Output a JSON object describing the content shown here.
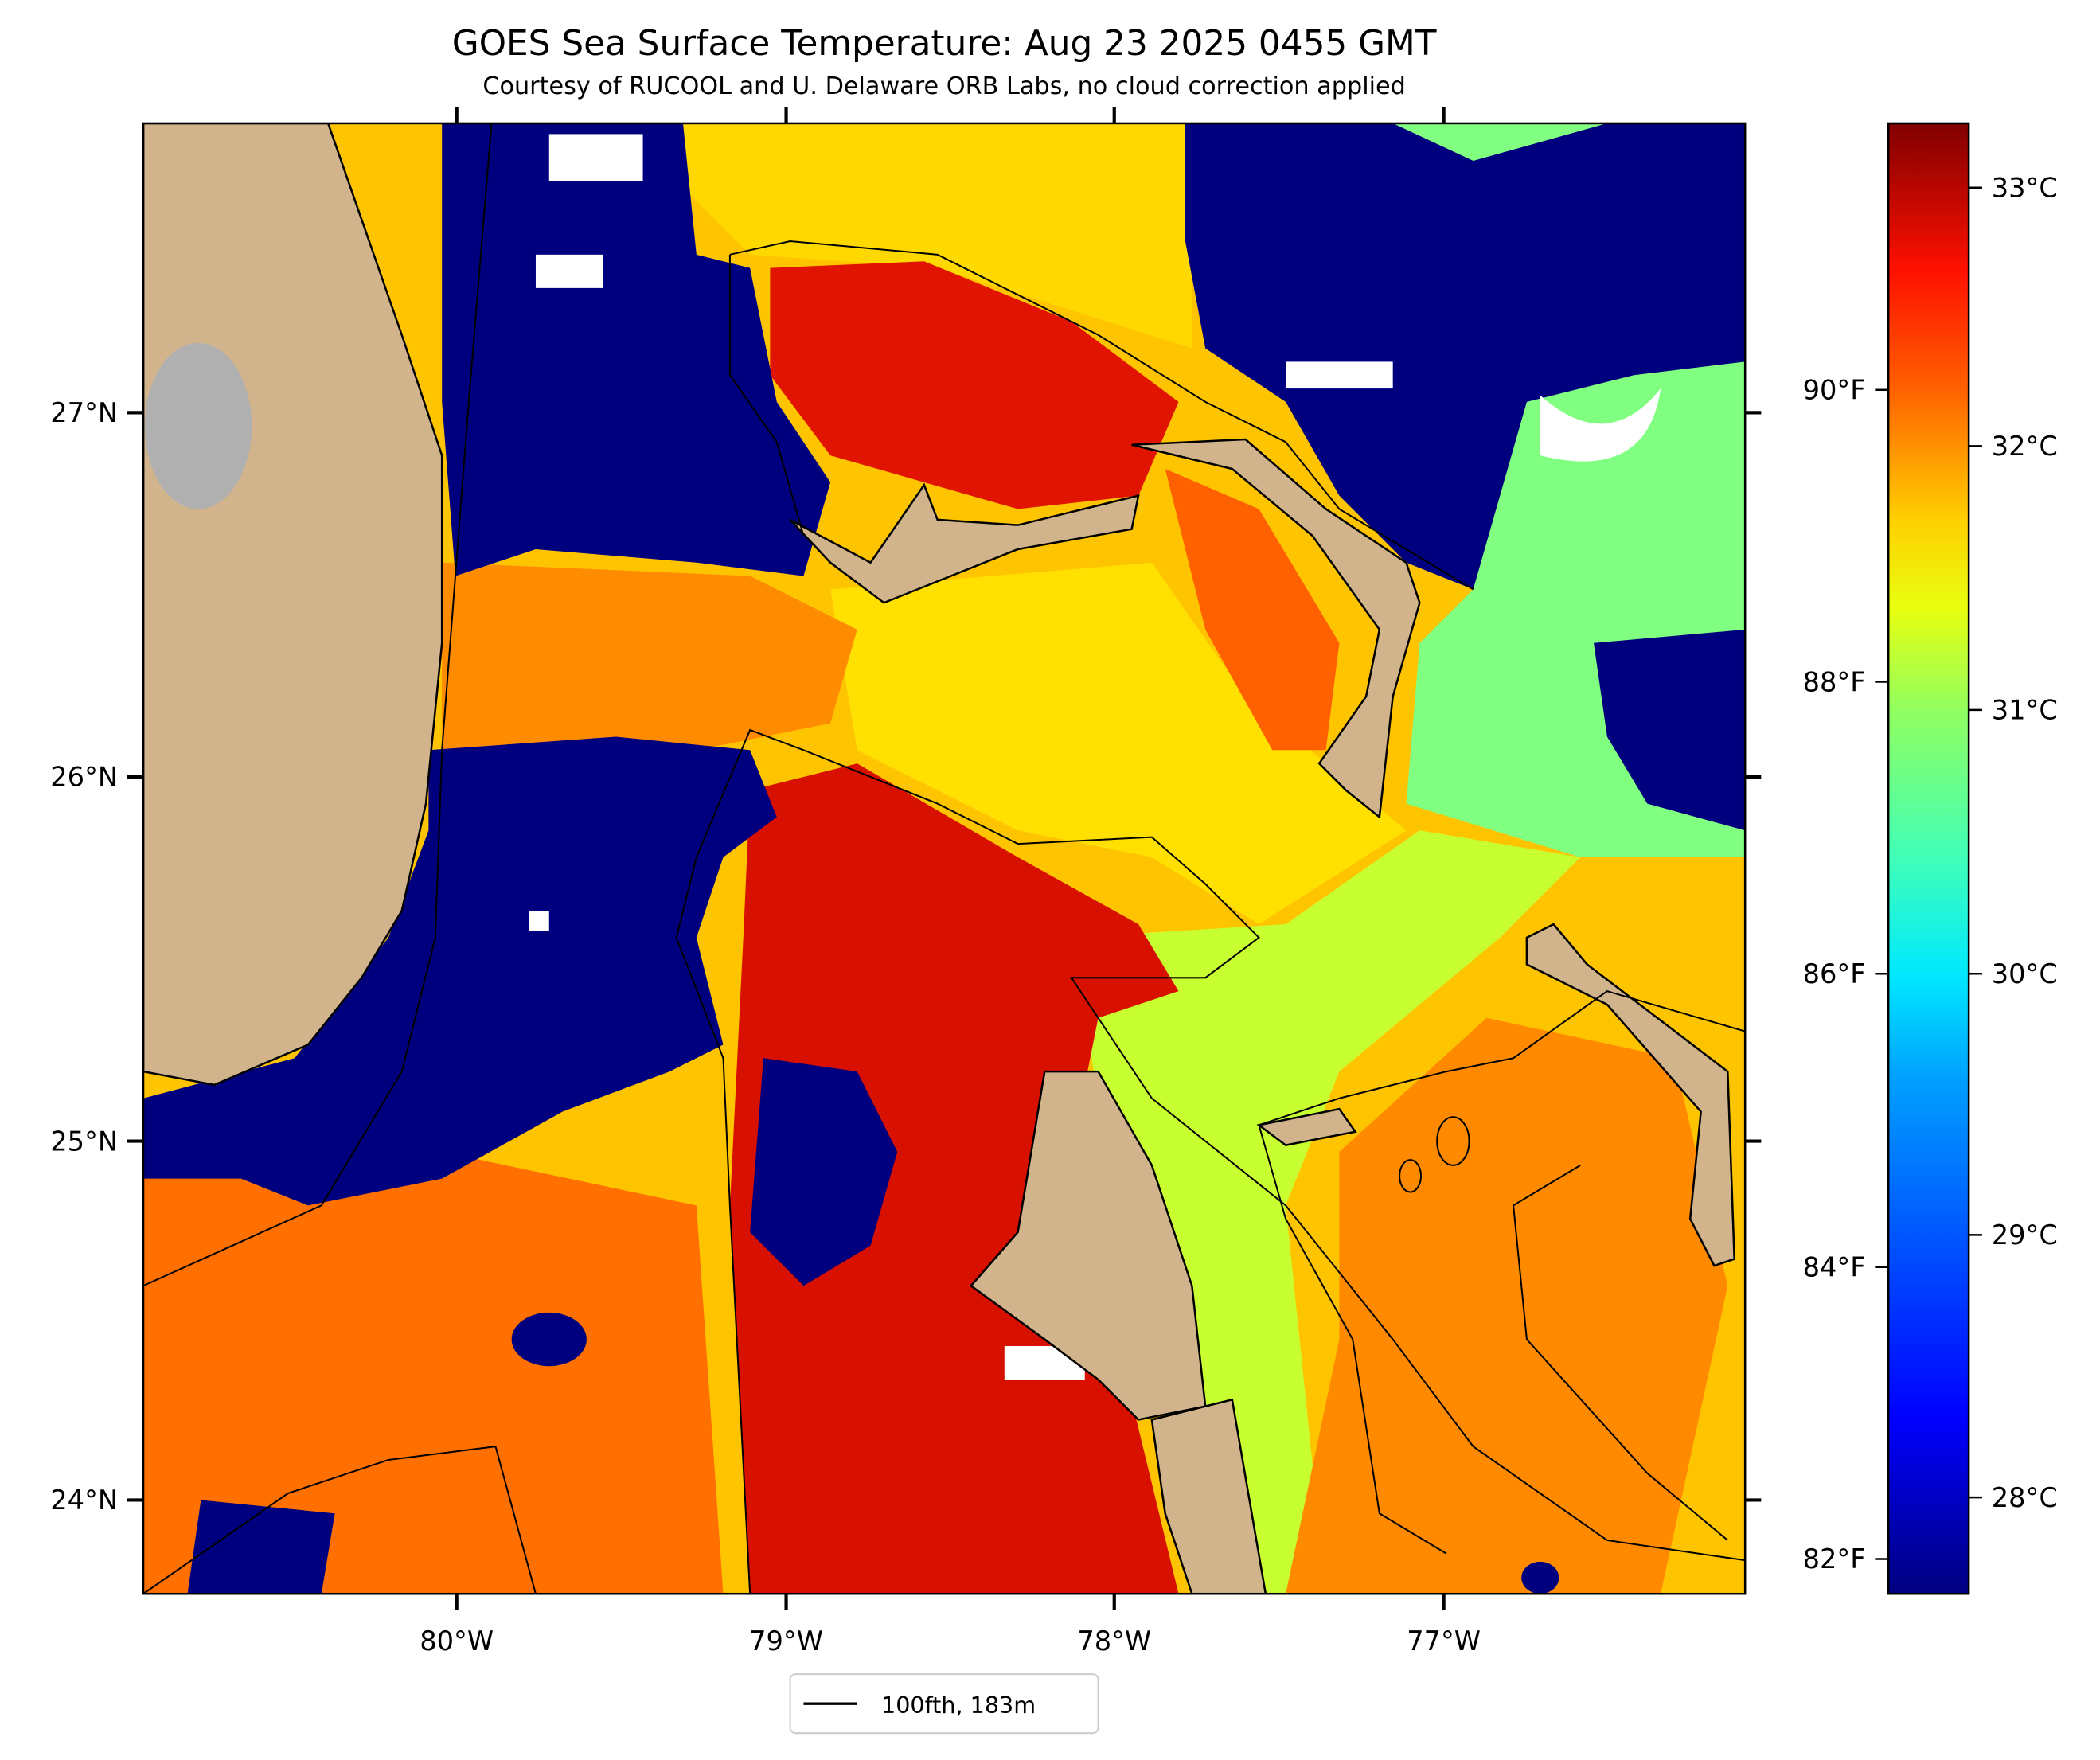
{
  "title": "GOES Sea Surface Temperature: Aug 23 2025 0455 GMT",
  "subtitle": "Courtesy of RUCOOL and U. Delaware ORB Labs, no cloud correction applied",
  "map": {
    "lon_ticks": [
      "80°W",
      "79°W",
      "78°W",
      "77°W"
    ],
    "lat_ticks": [
      "27°N",
      "26°N",
      "25°N",
      "24°N"
    ],
    "lon_range": [
      -80.95,
      -76.1
    ],
    "lat_range": [
      23.74,
      27.8
    ],
    "land_color": "#d2b48c",
    "lake_color": "#b0b0b0",
    "cloud_color": "#ffffff"
  },
  "legend": {
    "label": "100fth, 183m"
  },
  "colorbar": {
    "celsius_ticks": [
      "33°C",
      "32°C",
      "31°C",
      "30°C",
      "29°C",
      "28°C"
    ],
    "fahrenheit_ticks": [
      "90°F",
      "88°F",
      "86°F",
      "84°F",
      "82°F"
    ],
    "range_c": [
      27.6,
      33.25
    ],
    "colormap": "jet"
  },
  "chart_data": {
    "type": "heatmap",
    "title": "GOES Sea Surface Temperature: Aug 23 2025 0455 GMT",
    "xlabel": "",
    "ylabel": "",
    "x_ticks": [
      "80°W",
      "79°W",
      "78°W",
      "77°W"
    ],
    "y_ticks": [
      "27°N",
      "26°N",
      "25°N",
      "24°N"
    ],
    "value_range_c": [
      27.6,
      33.25
    ],
    "legend": [
      "100fth, 183m"
    ]
  }
}
